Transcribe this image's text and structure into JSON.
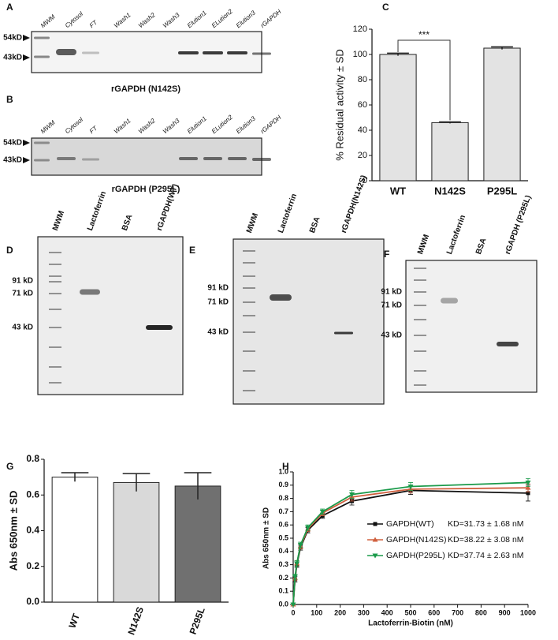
{
  "gels": [
    {
      "panel": "A",
      "lanes": [
        "MWM",
        "Cytosol",
        "FT",
        "Wash1",
        "Wash2",
        "Wash3",
        "Elution1",
        "ELution2",
        "Elution3",
        "rGAPDH"
      ],
      "markers": [
        "54kD",
        "43kD"
      ],
      "caption": "rGAPDH (N142S)"
    },
    {
      "panel": "B",
      "lanes": [
        "MWM",
        "Cytosol",
        "FT",
        "Wash1",
        "Wash2",
        "Wash3",
        "Elution1",
        "ELution2",
        "Elution3",
        "rGAPDH"
      ],
      "markers": [
        "54kD",
        "43kD"
      ],
      "caption": "rGAPDH (P295L)"
    },
    {
      "panel": "D",
      "lanes": [
        "MWM",
        "Lactoferrin",
        "BSA",
        "rGAPDH(WT)"
      ],
      "markers": [
        "91 kD",
        "71 kD",
        "43 kD"
      ]
    },
    {
      "panel": "E",
      "lanes": [
        "MWM",
        "Lactoferrin",
        "BSA",
        "rGAPDH(N142S)"
      ],
      "markers": [
        "91 kD",
        "71 kD",
        "43 kD"
      ]
    },
    {
      "panel": "F",
      "lanes": [
        "MWM",
        "Lactoferrin",
        "BSA",
        "rGAPDH (P295L)"
      ],
      "markers": [
        "91 kD",
        "71 kD",
        "43 kD"
      ]
    }
  ],
  "chart_data": [
    {
      "panel": "C",
      "type": "bar",
      "ylabel": "% Residual activity ± SD",
      "categories": [
        "WT",
        "N142S",
        "P295L"
      ],
      "values": [
        100,
        46,
        105
      ],
      "errors": [
        1,
        0.6,
        1
      ],
      "colors": [
        "#e3e3e3",
        "#e3e3e3",
        "#e3e3e3"
      ],
      "ylim": [
        0,
        120
      ],
      "yticks": [
        0,
        20,
        40,
        60,
        80,
        100,
        120
      ],
      "annotation": "***"
    },
    {
      "panel": "G",
      "type": "bar",
      "ylabel": "Abs 650nm ± SD",
      "categories": [
        "WT",
        "N142S",
        "P295L"
      ],
      "values": [
        0.7,
        0.67,
        0.65
      ],
      "errors": [
        0.025,
        0.05,
        0.075
      ],
      "colors": [
        "#ffffff",
        "#d9d9d9",
        "#707070"
      ],
      "ylim": [
        0,
        0.8
      ],
      "yticks": [
        {
          "value": 0,
          "label": "0.0"
        },
        0.2,
        0.4,
        0.6,
        0.8
      ]
    },
    {
      "panel": "H",
      "type": "line",
      "xlabel": "Lactoferrin-Biotin (nM)",
      "ylabel": "Abs 650nm ± SD",
      "x": [
        0,
        7.8,
        15.6,
        31.25,
        62.5,
        125,
        250,
        500,
        1000
      ],
      "series": [
        {
          "name": "GAPDH(WT)",
          "label": "KD=31.73 ± 1.68 nM",
          "color": "#111111",
          "marker": "square",
          "values": [
            0,
            0.19,
            0.3,
            0.43,
            0.56,
            0.67,
            0.78,
            0.86,
            0.84
          ],
          "errors": [
            0,
            0.02,
            0.02,
            0.02,
            0.02,
            0.02,
            0.03,
            0.03,
            0.06
          ]
        },
        {
          "name": "GAPDH(N142S)",
          "label": "KD=38.22 ± 3.08 nM",
          "color": "#d0603f",
          "marker": "triangle-up",
          "values": [
            0,
            0.2,
            0.31,
            0.44,
            0.57,
            0.69,
            0.81,
            0.87,
            0.88
          ],
          "errors": [
            0,
            0.02,
            0.02,
            0.02,
            0.02,
            0.02,
            0.03,
            0.03,
            0.03
          ]
        },
        {
          "name": "GAPDH(P295L)",
          "label": "KD=37.74 ± 2.63 nM",
          "color": "#1a9a4a",
          "marker": "triangle-down",
          "values": [
            0,
            0.21,
            0.31,
            0.45,
            0.58,
            0.7,
            0.83,
            0.89,
            0.92
          ],
          "errors": [
            0,
            0.02,
            0.02,
            0.02,
            0.02,
            0.02,
            0.03,
            0.03,
            0.03
          ]
        }
      ],
      "xlim": [
        0,
        1000
      ],
      "xticks": [
        0,
        100,
        200,
        300,
        400,
        500,
        600,
        700,
        800,
        900,
        1000
      ],
      "ylim": [
        0,
        1
      ],
      "yticks": [
        {
          "value": 0,
          "label": "0.0"
        },
        0.1,
        0.2,
        0.3,
        0.4,
        0.5,
        0.6,
        0.7,
        0.8,
        0.9,
        {
          "value": 1,
          "label": "1.0"
        }
      ]
    }
  ]
}
